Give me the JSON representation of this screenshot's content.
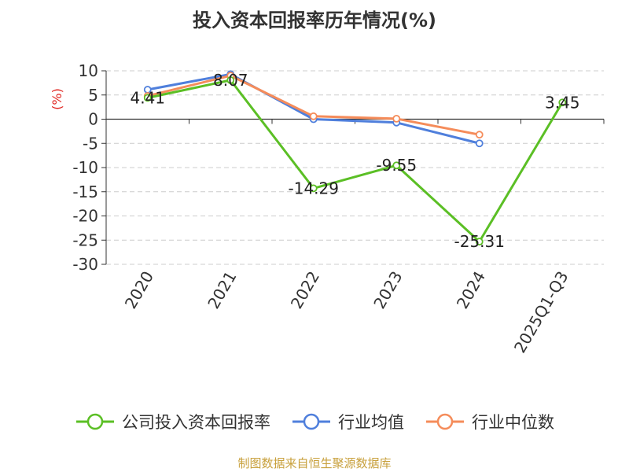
{
  "chart_data": {
    "type": "line",
    "title": "投入资本回报率历年情况(%)",
    "ylabel": "(%)",
    "xlabel": "",
    "categories": [
      "2020",
      "2021",
      "2022",
      "2023",
      "2024",
      "2025Q1-Q3"
    ],
    "ylim": [
      -30,
      10
    ],
    "yticks": [
      "10",
      "5",
      "0",
      "-5",
      "-10",
      "-15",
      "-20",
      "-25",
      "-30"
    ],
    "grid": true,
    "legend_position": "bottom",
    "series": [
      {
        "name": "公司投入资本回报率",
        "color": "#5bbf25",
        "values": [
          4.41,
          8.07,
          -14.29,
          -9.55,
          -25.31,
          3.45
        ],
        "labels": [
          "4.41",
          "8.07",
          "-14.29",
          "-9.55",
          "-25.31",
          "3.45"
        ]
      },
      {
        "name": "行业均值",
        "color": "#4f7fdc",
        "values": [
          6.1,
          9.3,
          0.0,
          -0.7,
          -5.0,
          null
        ]
      },
      {
        "name": "行业中位数",
        "color": "#f58c5a",
        "values": [
          4.8,
          9.0,
          0.6,
          0.1,
          -3.2,
          null
        ]
      }
    ]
  },
  "source_note": "制图数据来自恒生聚源数据库"
}
